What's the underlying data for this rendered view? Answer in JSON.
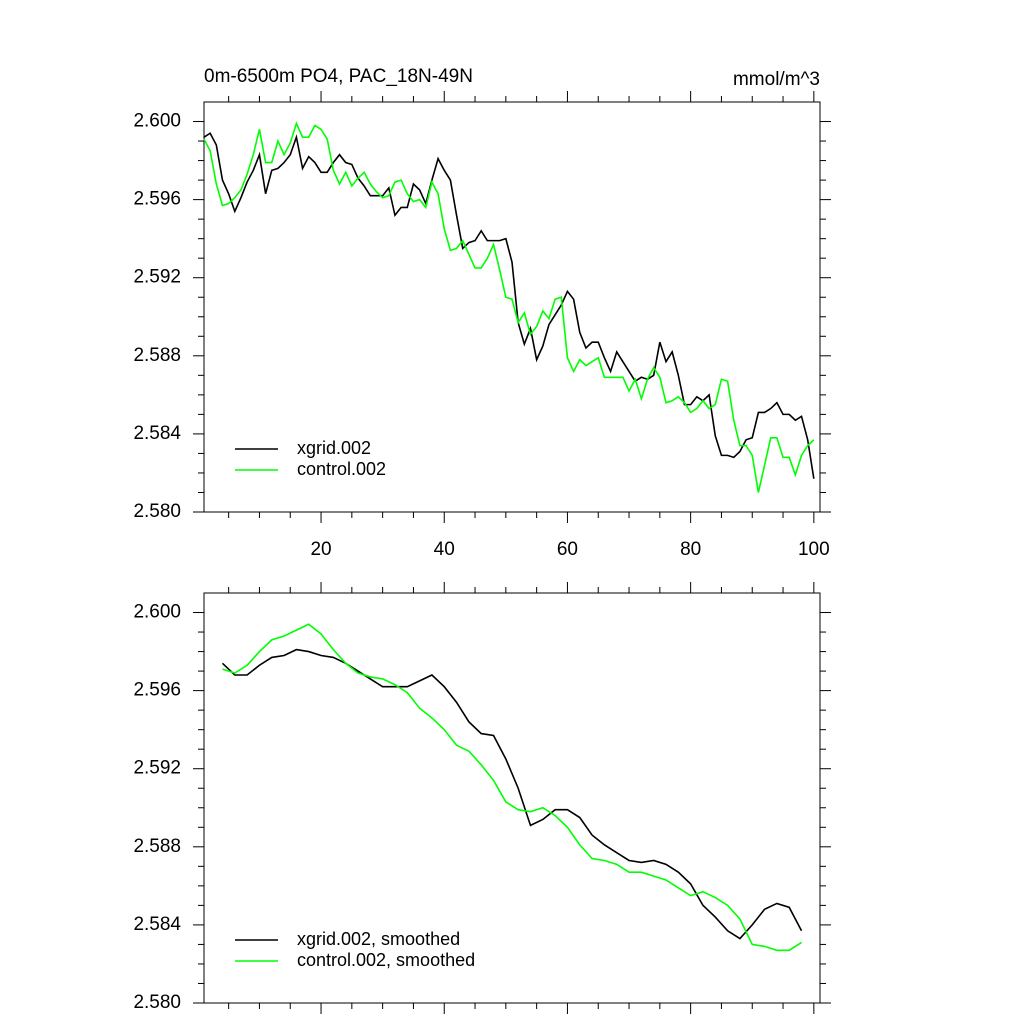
{
  "chart_data": [
    {
      "type": "line",
      "title": "0m-6500m PO4, PAC_18N-49N",
      "units": "mmol/m^3",
      "x": [
        1,
        2,
        3,
        4,
        5,
        6,
        7,
        8,
        9,
        10,
        11,
        12,
        13,
        14,
        15,
        16,
        17,
        18,
        19,
        20,
        21,
        22,
        23,
        24,
        25,
        26,
        27,
        28,
        29,
        30,
        31,
        32,
        33,
        34,
        35,
        36,
        37,
        38,
        39,
        40,
        41,
        42,
        43,
        44,
        45,
        46,
        47,
        48,
        49,
        50,
        51,
        52,
        53,
        54,
        55,
        56,
        57,
        58,
        59,
        60,
        61,
        62,
        63,
        64,
        65,
        66,
        67,
        68,
        69,
        70,
        71,
        72,
        73,
        74,
        75,
        76,
        77,
        78,
        79,
        80,
        81,
        82,
        83,
        84,
        85,
        86,
        87,
        88,
        89,
        90,
        91,
        92,
        93,
        94,
        95,
        96,
        97,
        98,
        99,
        100
      ],
      "series": [
        {
          "name": "xgrid.002",
          "color": "#000000",
          "values": [
            2.5992,
            2.5994,
            2.5988,
            2.597,
            2.5963,
            2.5954,
            2.5961,
            2.5969,
            2.5975,
            2.5983,
            2.5963,
            2.5975,
            2.5976,
            2.5979,
            2.5983,
            2.5992,
            2.5976,
            2.5982,
            2.5979,
            2.5974,
            2.5974,
            2.5979,
            2.5983,
            2.5979,
            2.5978,
            2.5971,
            2.5967,
            2.5962,
            2.5962,
            2.5962,
            2.5966,
            2.5952,
            2.5956,
            2.5956,
            2.5968,
            2.5965,
            2.5958,
            2.597,
            2.5981,
            2.5975,
            2.597,
            2.5952,
            2.5935,
            2.5938,
            2.5939,
            2.5944,
            2.5939,
            2.5939,
            2.5939,
            2.594,
            2.5928,
            2.5897,
            2.5886,
            2.5894,
            2.5878,
            2.5885,
            2.5896,
            2.5901,
            2.5906,
            2.5913,
            2.5909,
            2.5892,
            2.5884,
            2.5887,
            2.5887,
            2.5879,
            2.5872,
            2.5882,
            2.5877,
            2.5872,
            2.5867,
            2.5869,
            2.5868,
            2.587,
            2.5887,
            2.5877,
            2.5882,
            2.587,
            2.5855,
            2.5855,
            2.5859,
            2.5857,
            2.586,
            2.5839,
            2.5829,
            2.5829,
            2.5828,
            2.5831,
            2.5837,
            2.5838,
            2.5851,
            2.5851,
            2.5853,
            2.5856,
            2.585,
            2.585,
            2.5847,
            2.5849,
            2.5837,
            2.5817
          ]
        },
        {
          "name": "control.002",
          "color": "#00ff00",
          "values": [
            2.5991,
            2.5985,
            2.5968,
            2.5957,
            2.5958,
            2.5961,
            2.5965,
            2.5973,
            2.5983,
            2.5996,
            2.5979,
            2.5979,
            2.599,
            2.5983,
            2.5989,
            2.5999,
            2.5992,
            2.5992,
            2.5998,
            2.5996,
            2.5991,
            2.5975,
            2.5968,
            2.5974,
            2.5967,
            2.5971,
            2.5974,
            2.5968,
            2.5964,
            2.5961,
            2.5962,
            2.5969,
            2.597,
            2.5963,
            2.5959,
            2.596,
            2.5956,
            2.5969,
            2.5963,
            2.5945,
            2.5934,
            2.5935,
            2.5939,
            2.5932,
            2.5925,
            2.5925,
            2.593,
            2.5937,
            2.5924,
            2.591,
            2.5909,
            2.5897,
            2.5902,
            2.5891,
            2.5895,
            2.5903,
            2.5899,
            2.5909,
            2.591,
            2.5879,
            2.5872,
            2.5878,
            2.5875,
            2.5877,
            2.5879,
            2.5869,
            2.5869,
            2.5869,
            2.5869,
            2.5862,
            2.5868,
            2.5858,
            2.5868,
            2.5874,
            2.5869,
            2.5856,
            2.5857,
            2.5859,
            2.5856,
            2.5851,
            2.5853,
            2.5857,
            2.5853,
            2.5855,
            2.5868,
            2.5867,
            2.5847,
            2.5834,
            2.5834,
            2.5829,
            2.581,
            2.5824,
            2.5838,
            2.5838,
            2.5828,
            2.5828,
            2.5819,
            2.5829,
            2.5834,
            2.5837
          ]
        }
      ],
      "xlim": [
        1,
        101
      ],
      "xticks": [
        20,
        40,
        60,
        80,
        100
      ],
      "show_xtick_labels": true,
      "ylim": [
        2.58,
        2.601
      ],
      "yticks": [
        {
          "value": 2.58,
          "label": "2.580"
        },
        2.584,
        2.588,
        2.592,
        2.596,
        {
          "value": 2.6,
          "label": "2.600"
        }
      ],
      "legend": "lower left"
    },
    {
      "type": "line",
      "x": [
        4,
        6,
        8,
        10,
        12,
        14,
        16,
        18,
        20,
        22,
        24,
        26,
        28,
        30,
        32,
        34,
        36,
        38,
        40,
        42,
        44,
        46,
        48,
        50,
        52,
        54,
        56,
        58,
        60,
        62,
        64,
        66,
        68,
        70,
        72,
        74,
        76,
        78,
        80,
        82,
        84,
        86,
        88,
        90,
        92,
        94,
        96,
        98
      ],
      "series": [
        {
          "name": "xgrid.002, smoothed",
          "color": "#000000",
          "values": [
            2.5974,
            2.5968,
            2.5968,
            2.5973,
            2.5977,
            2.5978,
            2.5981,
            2.598,
            2.5978,
            2.5977,
            2.5974,
            2.597,
            2.5966,
            2.5962,
            2.5962,
            2.5962,
            2.5965,
            2.5968,
            2.5962,
            2.5954,
            2.5944,
            2.5938,
            2.5937,
            2.5925,
            2.591,
            2.5891,
            2.5894,
            2.5899,
            2.5899,
            2.5895,
            2.5886,
            2.5881,
            2.5877,
            2.5873,
            2.5872,
            2.5873,
            2.5871,
            2.5867,
            2.5861,
            2.585,
            2.5844,
            2.5837,
            2.5833,
            2.584,
            2.5848,
            2.5851,
            2.5849,
            2.5837
          ]
        },
        {
          "name": "control.002, smoothed",
          "color": "#00ff00",
          "values": [
            2.5971,
            2.5969,
            2.5973,
            2.598,
            2.5986,
            2.5988,
            2.5991,
            2.5994,
            2.5989,
            2.5981,
            2.5974,
            2.5969,
            2.5967,
            2.5966,
            2.5963,
            2.5959,
            2.5951,
            2.5946,
            2.594,
            2.5932,
            2.5929,
            2.5922,
            2.5914,
            2.5903,
            2.5899,
            2.5898,
            2.59,
            2.5896,
            2.589,
            2.5881,
            2.5874,
            2.5873,
            2.5871,
            2.5867,
            2.5867,
            2.5865,
            2.5863,
            2.5859,
            2.5855,
            2.5857,
            2.5854,
            2.585,
            2.5843,
            2.583,
            2.5829,
            2.5827,
            2.5827,
            2.5831
          ]
        }
      ],
      "xlim": [
        1,
        101
      ],
      "xticks": [
        20,
        40,
        60,
        80,
        100
      ],
      "show_xtick_labels": false,
      "ylim": [
        2.58,
        2.601
      ],
      "yticks": [
        {
          "value": 2.58,
          "label": "2.580"
        },
        2.584,
        2.588,
        2.592,
        2.596,
        {
          "value": 2.6,
          "label": "2.600"
        }
      ],
      "legend": "lower left"
    }
  ]
}
